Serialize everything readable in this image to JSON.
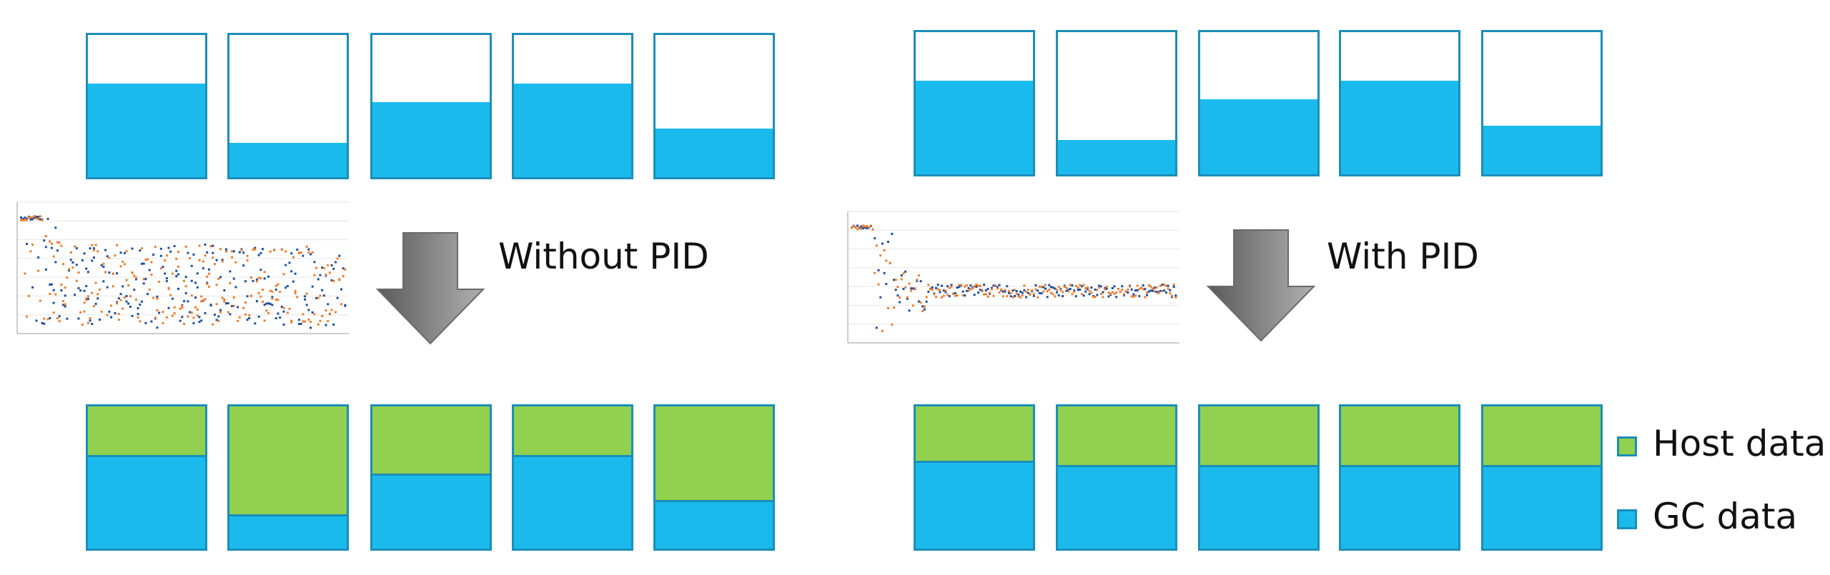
{
  "labels": {
    "without": "Without PID",
    "with": "With PID"
  },
  "legend": {
    "host": "Host data",
    "gc": "GC data"
  },
  "colors": {
    "gc": "#1bbaed",
    "host": "#92d050",
    "border": "#1a8fb8",
    "series_a": "#1f4e9c",
    "series_b": "#ed7d31"
  },
  "left": {
    "before_fill_fractions": [
      0.66,
      0.24,
      0.53,
      0.66,
      0.34
    ],
    "after": [
      {
        "gc": 0.66,
        "host": 0.34
      },
      {
        "gc": 0.24,
        "host": 0.76
      },
      {
        "gc": 0.53,
        "host": 0.47
      },
      {
        "gc": 0.66,
        "host": 0.34
      },
      {
        "gc": 0.34,
        "host": 0.66
      }
    ]
  },
  "right": {
    "before_fill_fractions": [
      0.66,
      0.24,
      0.53,
      0.66,
      0.34
    ],
    "after": [
      {
        "gc": 0.62,
        "host": 0.38
      },
      {
        "gc": 0.59,
        "host": 0.41
      },
      {
        "gc": 0.59,
        "host": 0.41
      },
      {
        "gc": 0.59,
        "host": 0.41
      },
      {
        "gc": 0.59,
        "host": 0.41
      }
    ]
  }
}
